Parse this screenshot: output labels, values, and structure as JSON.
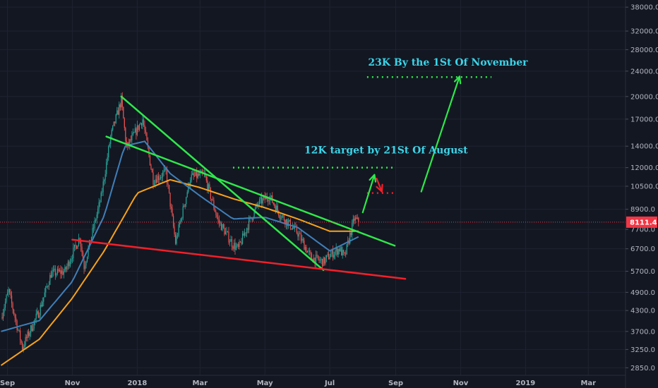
{
  "chart_data": {
    "type": "candlestick",
    "scale": "log",
    "ylim": [
      2700,
      40000
    ],
    "xlim": [
      "2017-08-25",
      "2019-04-05"
    ],
    "yticks": [
      38000,
      32000,
      28000,
      24000,
      20000,
      17000,
      14000,
      12000,
      10500,
      8900,
      7700,
      6700,
      5700,
      4900,
      4300,
      3700,
      3250,
      2850
    ],
    "ytick_labels": [
      "38000.0",
      "32000.0",
      "28000.0",
      "24000.0",
      "20000.0",
      "17000.0",
      "14000.0",
      "12000.0",
      "10500.0",
      "8900.0",
      "7700.0",
      "6700.0",
      "5700.0",
      "4900.0",
      "4300.0",
      "3700.0",
      "3250.0",
      "2850.0"
    ],
    "xticks": [
      {
        "date": "2017-09-01",
        "label": "Sep"
      },
      {
        "date": "2017-11-01",
        "label": "Nov"
      },
      {
        "date": "2018-01-01",
        "label": "2018"
      },
      {
        "date": "2018-03-01",
        "label": "Mar"
      },
      {
        "date": "2018-05-01",
        "label": "May"
      },
      {
        "date": "2018-07-01",
        "label": "Jul"
      },
      {
        "date": "2018-09-01",
        "label": "Sep"
      },
      {
        "date": "2018-11-01",
        "label": "Nov"
      },
      {
        "date": "2019-01-01",
        "label": "2019"
      },
      {
        "date": "2019-03-01",
        "label": "Mar"
      }
    ],
    "colors": {
      "up": "#26a69a",
      "down": "#ef5350",
      "ma_fast": "#3f7fb8",
      "ma_slow": "#f7a21b",
      "trend_green": "#2ee84a",
      "trend_red": "#f0202a",
      "annotation": "#3bd4e8",
      "price_line": "#f23645"
    },
    "price_anchors": [
      [
        "2017-08-26",
        4100
      ],
      [
        "2017-09-02",
        4950
      ],
      [
        "2017-09-15",
        3300
      ],
      [
        "2017-10-01",
        4300
      ],
      [
        "2017-10-12",
        5600
      ],
      [
        "2017-10-25",
        5700
      ],
      [
        "2017-11-08",
        7300
      ],
      [
        "2017-11-12",
        5900
      ],
      [
        "2017-11-28",
        9700
      ],
      [
        "2017-12-07",
        15000
      ],
      [
        "2017-12-17",
        19500
      ],
      [
        "2017-12-22",
        13800
      ],
      [
        "2018-01-06",
        17000
      ],
      [
        "2018-01-16",
        11000
      ],
      [
        "2018-01-28",
        11600
      ],
      [
        "2018-02-06",
        7000
      ],
      [
        "2018-02-20",
        11200
      ],
      [
        "2018-03-05",
        11400
      ],
      [
        "2018-03-18",
        8200
      ],
      [
        "2018-04-01",
        6900
      ],
      [
        "2018-04-06",
        6700
      ],
      [
        "2018-04-16",
        8100
      ],
      [
        "2018-04-25",
        9300
      ],
      [
        "2018-05-05",
        9800
      ],
      [
        "2018-05-15",
        8600
      ],
      [
        "2018-06-01",
        7500
      ],
      [
        "2018-06-13",
        6300
      ],
      [
        "2018-06-25",
        6100
      ],
      [
        "2018-07-01",
        6400
      ],
      [
        "2018-07-10",
        6700
      ],
      [
        "2018-07-15",
        6300
      ],
      [
        "2018-07-20",
        7400
      ],
      [
        "2018-07-24",
        8300
      ],
      [
        "2018-07-28",
        8111
      ]
    ],
    "ma_fast": [
      [
        "2017-08-26",
        3700
      ],
      [
        "2017-10-01",
        4000
      ],
      [
        "2017-11-01",
        5300
      ],
      [
        "2017-12-01",
        8500
      ],
      [
        "2017-12-20",
        14000
      ],
      [
        "2018-01-08",
        14500
      ],
      [
        "2018-02-01",
        11500
      ],
      [
        "2018-03-01",
        9800
      ],
      [
        "2018-04-01",
        8300
      ],
      [
        "2018-05-01",
        8400
      ],
      [
        "2018-06-01",
        7800
      ],
      [
        "2018-07-01",
        6600
      ],
      [
        "2018-07-28",
        7300
      ]
    ],
    "ma_slow": [
      [
        "2017-08-26",
        2900
      ],
      [
        "2017-10-01",
        3500
      ],
      [
        "2017-11-01",
        4700
      ],
      [
        "2017-12-01",
        6600
      ],
      [
        "2018-01-01",
        10000
      ],
      [
        "2018-02-01",
        11000
      ],
      [
        "2018-03-01",
        10400
      ],
      [
        "2018-04-01",
        9600
      ],
      [
        "2018-05-01",
        9000
      ],
      [
        "2018-06-01",
        8300
      ],
      [
        "2018-07-01",
        7600
      ],
      [
        "2018-07-28",
        7600
      ]
    ],
    "trend_lines": [
      {
        "name": "descending-resistance",
        "color": "green",
        "from": [
          "2017-12-17",
          20000
        ],
        "to": [
          "2018-06-25",
          5750
        ]
      },
      {
        "name": "upper-trendline",
        "color": "green",
        "from": [
          "2017-12-03",
          15000
        ],
        "to": [
          "2018-08-31",
          6850
        ]
      },
      {
        "name": "support-line",
        "color": "red",
        "from": [
          "2017-11-01",
          7150
        ],
        "to": [
          "2018-09-10",
          5400
        ]
      }
    ],
    "levels": [
      {
        "name": "target-23k",
        "value": 23000,
        "color": "green",
        "from": "2018-08-05",
        "to": "2018-11-30"
      },
      {
        "name": "target-12k",
        "value": 12000,
        "color": "green",
        "from": "2018-04-01",
        "to": "2018-08-31"
      },
      {
        "name": "retest-10k",
        "value": 10000,
        "color": "red",
        "from": "2018-08-05",
        "to": "2018-08-31"
      }
    ],
    "arrows": [
      {
        "name": "arrow-up-first",
        "color": "green",
        "from": [
          "2018-08-01",
          8700
        ],
        "to": [
          "2018-08-12",
          11400
        ]
      },
      {
        "name": "arrow-down",
        "color": "red",
        "from": [
          "2018-08-14",
          11100
        ],
        "to": [
          "2018-08-19",
          10100
        ]
      },
      {
        "name": "arrow-up-second",
        "color": "green",
        "from": [
          "2018-09-25",
          10100
        ],
        "to": [
          "2018-10-31",
          23100
        ]
      }
    ],
    "annotations": [
      {
        "text": "23K By  the 1St Of November",
        "date": "2018-08-06",
        "value": 25000
      },
      {
        "text": "12K target by 21St Of August",
        "date": "2018-06-07",
        "value": 13300
      }
    ],
    "current_price": {
      "value": 8111,
      "label": "8111.4"
    }
  }
}
